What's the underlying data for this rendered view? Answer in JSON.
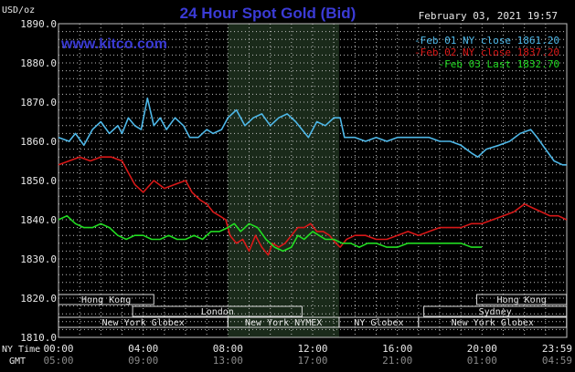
{
  "header": {
    "title": "24 Hour Spot Gold (Bid)",
    "timestamp": "February 03, 2021 19:57",
    "site": "www.kitco.com",
    "y_unit": "USD/oz"
  },
  "colors": {
    "background": "#000000",
    "grid": "#bfbfbf",
    "title": "#3b3bd6",
    "site": "#3b3bd6",
    "text": "#e8e8e8",
    "nymex_band": "#1a2a1a",
    "series_feb01": "#4fb8e8",
    "series_feb02": "#d81818",
    "series_feb03": "#22dd22"
  },
  "time_axis": {
    "ny_label": "NY Time",
    "gmt_label": "GMT",
    "ny_ticks": [
      "00:00",
      "04:00",
      "08:00",
      "12:00",
      "16:00",
      "20:00",
      "23:59"
    ],
    "gmt_ticks": [
      "05:00",
      "09:00",
      "13:00",
      "17:00",
      "21:00",
      "01:00",
      "04:59"
    ]
  },
  "market_sessions": {
    "row1": [
      {
        "label": "Hong Kong",
        "from_h": 0,
        "to_h": 4.5
      },
      {
        "label": "Hong Kong",
        "from_h": 19.75,
        "to_h": 23.99
      }
    ],
    "row2": [
      {
        "label": "London",
        "from_h": 3.5,
        "to_h": 11.5
      },
      {
        "label": "Sydney",
        "from_h": 17.25,
        "to_h": 23.99
      }
    ],
    "row3": [
      {
        "label": "New York Globex",
        "from_h": 0,
        "to_h": 8.0
      },
      {
        "label": "New York NYMEX",
        "from_h": 8.0,
        "to_h": 13.25
      },
      {
        "label": "NY Globex",
        "from_h": 13.25,
        "to_h": 17.0
      },
      {
        "label": "New York Globex",
        "from_h": 17.0,
        "to_h": 23.99
      }
    ]
  },
  "chart_data": {
    "type": "line",
    "title": "24 Hour Spot Gold (Bid)",
    "xlabel": "NY Time",
    "ylabel": "USD/oz",
    "xlim": [
      0,
      24
    ],
    "ylim": [
      1810,
      1890
    ],
    "y_ticks": [
      "1820.0",
      "1830.0",
      "1840.0",
      "1850.0",
      "1860.0",
      "1870.0",
      "1880.0",
      "1890.0"
    ],
    "y_tick_values": [
      1820,
      1830,
      1840,
      1850,
      1860,
      1870,
      1880,
      1890
    ],
    "bottom_label": "1810.0",
    "grid": true,
    "legend_position": "top-right",
    "highlight_band_hours": [
      8.0,
      13.25
    ],
    "series": [
      {
        "name": "Feb 01 NY close 1861.20",
        "color": "#4fb8e8",
        "points": [
          [
            0,
            1861
          ],
          [
            0.5,
            1860
          ],
          [
            0.8,
            1862
          ],
          [
            1.2,
            1859
          ],
          [
            1.6,
            1863
          ],
          [
            2.0,
            1865
          ],
          [
            2.4,
            1862
          ],
          [
            2.8,
            1864
          ],
          [
            3.0,
            1862
          ],
          [
            3.3,
            1866
          ],
          [
            3.6,
            1864
          ],
          [
            3.9,
            1863
          ],
          [
            4.2,
            1871
          ],
          [
            4.5,
            1864
          ],
          [
            4.8,
            1866
          ],
          [
            5.1,
            1863
          ],
          [
            5.5,
            1866
          ],
          [
            5.9,
            1864
          ],
          [
            6.2,
            1861
          ],
          [
            6.6,
            1861
          ],
          [
            7.0,
            1863
          ],
          [
            7.3,
            1862
          ],
          [
            7.7,
            1863
          ],
          [
            8.0,
            1866
          ],
          [
            8.4,
            1868
          ],
          [
            8.8,
            1864
          ],
          [
            9.2,
            1866
          ],
          [
            9.6,
            1867
          ],
          [
            10.0,
            1864
          ],
          [
            10.4,
            1866
          ],
          [
            10.8,
            1867
          ],
          [
            11.2,
            1865
          ],
          [
            11.5,
            1863
          ],
          [
            11.8,
            1861
          ],
          [
            12.2,
            1865
          ],
          [
            12.6,
            1864
          ],
          [
            13.0,
            1866
          ],
          [
            13.3,
            1866
          ],
          [
            13.5,
            1861
          ],
          [
            14.0,
            1861
          ],
          [
            14.5,
            1860
          ],
          [
            15.0,
            1861
          ],
          [
            15.5,
            1860
          ],
          [
            16.0,
            1861
          ],
          [
            16.5,
            1861
          ],
          [
            17.0,
            1861
          ],
          [
            17.5,
            1861
          ],
          [
            18.0,
            1860
          ],
          [
            18.5,
            1860
          ],
          [
            19.0,
            1859
          ],
          [
            19.5,
            1857
          ],
          [
            19.8,
            1856
          ],
          [
            20.2,
            1858
          ],
          [
            20.8,
            1859
          ],
          [
            21.3,
            1860
          ],
          [
            21.8,
            1862
          ],
          [
            22.3,
            1863
          ],
          [
            22.6,
            1861
          ],
          [
            23.0,
            1858
          ],
          [
            23.4,
            1855
          ],
          [
            23.8,
            1854
          ],
          [
            23.99,
            1854
          ]
        ]
      },
      {
        "name": "Feb 02 NY close 1837.20",
        "color": "#d81818",
        "points": [
          [
            0,
            1854
          ],
          [
            0.5,
            1855
          ],
          [
            1.0,
            1856
          ],
          [
            1.5,
            1855
          ],
          [
            2.0,
            1856
          ],
          [
            2.5,
            1856
          ],
          [
            3.0,
            1855
          ],
          [
            3.3,
            1852
          ],
          [
            3.6,
            1849
          ],
          [
            4.0,
            1847
          ],
          [
            4.5,
            1850
          ],
          [
            5.0,
            1848
          ],
          [
            5.5,
            1849
          ],
          [
            6.0,
            1850
          ],
          [
            6.3,
            1847
          ],
          [
            6.7,
            1845
          ],
          [
            7.0,
            1844
          ],
          [
            7.3,
            1842
          ],
          [
            7.6,
            1841
          ],
          [
            7.9,
            1840
          ],
          [
            8.1,
            1836
          ],
          [
            8.4,
            1834
          ],
          [
            8.7,
            1835
          ],
          [
            9.0,
            1832
          ],
          [
            9.3,
            1836
          ],
          [
            9.6,
            1833
          ],
          [
            9.9,
            1831
          ],
          [
            10.1,
            1834
          ],
          [
            10.4,
            1833
          ],
          [
            10.7,
            1834
          ],
          [
            11.0,
            1836
          ],
          [
            11.3,
            1838
          ],
          [
            11.6,
            1838
          ],
          [
            11.9,
            1839
          ],
          [
            12.2,
            1837
          ],
          [
            12.5,
            1837
          ],
          [
            12.8,
            1836
          ],
          [
            13.1,
            1834
          ],
          [
            13.3,
            1833
          ],
          [
            13.6,
            1835
          ],
          [
            14.0,
            1836
          ],
          [
            14.5,
            1836
          ],
          [
            15.0,
            1835
          ],
          [
            15.5,
            1835
          ],
          [
            16.0,
            1836
          ],
          [
            16.5,
            1837
          ],
          [
            17.0,
            1836
          ],
          [
            17.5,
            1837
          ],
          [
            18.0,
            1838
          ],
          [
            18.5,
            1838
          ],
          [
            19.0,
            1838
          ],
          [
            19.5,
            1839
          ],
          [
            20.0,
            1839
          ],
          [
            20.5,
            1840
          ],
          [
            21.0,
            1841
          ],
          [
            21.5,
            1842
          ],
          [
            22.0,
            1844
          ],
          [
            22.4,
            1843
          ],
          [
            22.8,
            1842
          ],
          [
            23.2,
            1841
          ],
          [
            23.6,
            1841
          ],
          [
            23.99,
            1840
          ]
        ]
      },
      {
        "name": "Feb 03 Last 1832.70",
        "color": "#22dd22",
        "points": [
          [
            0,
            1840
          ],
          [
            0.4,
            1841
          ],
          [
            0.8,
            1839
          ],
          [
            1.2,
            1838
          ],
          [
            1.6,
            1838
          ],
          [
            2.0,
            1839
          ],
          [
            2.4,
            1838
          ],
          [
            2.8,
            1836
          ],
          [
            3.2,
            1835
          ],
          [
            3.6,
            1836
          ],
          [
            4.0,
            1836
          ],
          [
            4.4,
            1835
          ],
          [
            4.8,
            1835
          ],
          [
            5.2,
            1836
          ],
          [
            5.6,
            1835
          ],
          [
            6.0,
            1835
          ],
          [
            6.4,
            1836
          ],
          [
            6.8,
            1835
          ],
          [
            7.2,
            1837
          ],
          [
            7.6,
            1837
          ],
          [
            8.0,
            1838
          ],
          [
            8.3,
            1839
          ],
          [
            8.6,
            1837
          ],
          [
            9.0,
            1839
          ],
          [
            9.4,
            1838
          ],
          [
            9.8,
            1835
          ],
          [
            10.2,
            1833
          ],
          [
            10.6,
            1832
          ],
          [
            11.0,
            1833
          ],
          [
            11.3,
            1836
          ],
          [
            11.6,
            1835
          ],
          [
            12.0,
            1837
          ],
          [
            12.3,
            1836
          ],
          [
            12.6,
            1835
          ],
          [
            13.0,
            1835
          ],
          [
            13.4,
            1834
          ],
          [
            13.8,
            1834
          ],
          [
            14.2,
            1833
          ],
          [
            14.6,
            1834
          ],
          [
            15.0,
            1834
          ],
          [
            15.5,
            1833
          ],
          [
            16.0,
            1833
          ],
          [
            16.5,
            1834
          ],
          [
            17.0,
            1834
          ],
          [
            17.5,
            1834
          ],
          [
            18.0,
            1834
          ],
          [
            18.5,
            1834
          ],
          [
            19.0,
            1834
          ],
          [
            19.5,
            1833
          ],
          [
            19.99,
            1833
          ]
        ]
      }
    ]
  }
}
